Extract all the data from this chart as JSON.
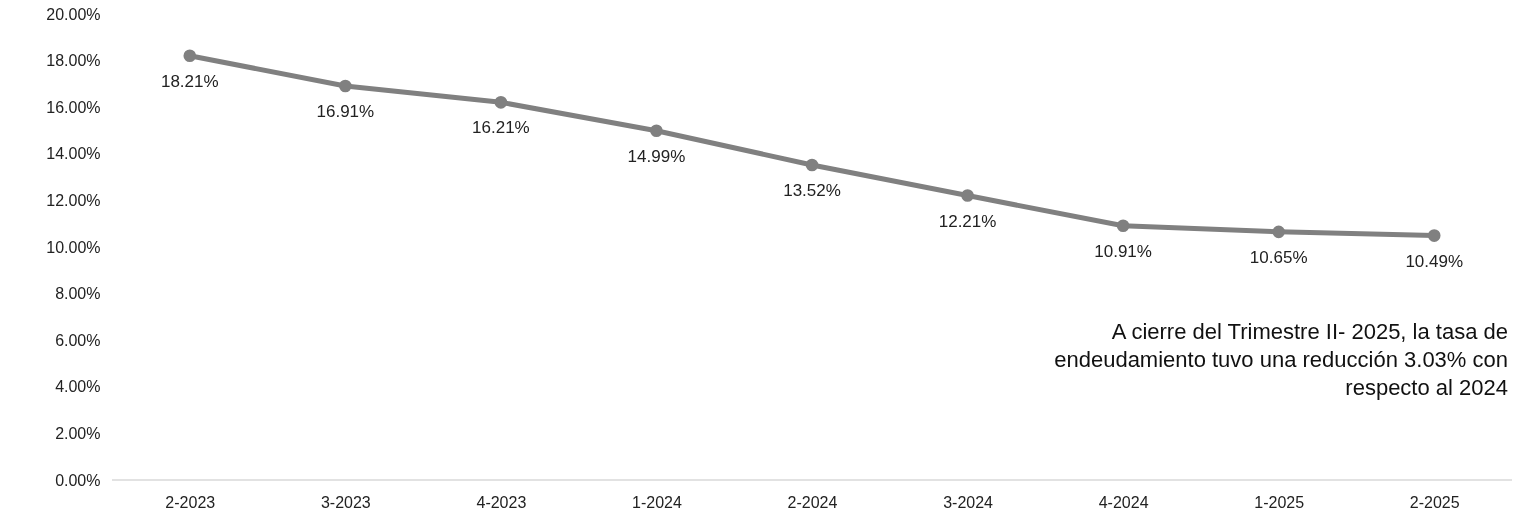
{
  "chart_data": {
    "type": "line",
    "categories": [
      "2-2023",
      "3-2023",
      "4-2023",
      "1-2024",
      "2-2024",
      "3-2024",
      "4-2024",
      "1-2025",
      "2-2025"
    ],
    "series": [
      {
        "color": "#808080",
        "values": [
          18.21,
          16.91,
          16.21,
          14.99,
          13.52,
          12.21,
          10.91,
          10.65,
          10.49
        ]
      }
    ],
    "value_labels": [
      "18.21%",
      "16.91%",
      "16.21%",
      "14.99%",
      "13.52%",
      "12.21%",
      "10.91%",
      "10.65%",
      "10.49%"
    ],
    "ylim": [
      0,
      20
    ],
    "yticks": [
      {
        "value": 0,
        "label": "0.00%"
      },
      {
        "value": 2,
        "label": "2.00%"
      },
      {
        "value": 4,
        "label": "4.00%"
      },
      {
        "value": 6,
        "label": "6.00%"
      },
      {
        "value": 8,
        "label": "8.00%"
      },
      {
        "value": 10,
        "label": "10.00%"
      },
      {
        "value": 12,
        "label": "12.00%"
      },
      {
        "value": 14,
        "label": "14.00%"
      },
      {
        "value": 16,
        "label": "16.00%"
      },
      {
        "value": 18,
        "label": "18.00%"
      },
      {
        "value": 20,
        "label": "20.00%"
      }
    ],
    "grid": false,
    "marker": "circle",
    "line_style": "solid",
    "annotations": [
      "A cierre del Trimestre II- 2025, la tasa de endeudamiento tuvo una reducción 3.03% con respecto al 2024"
    ]
  }
}
